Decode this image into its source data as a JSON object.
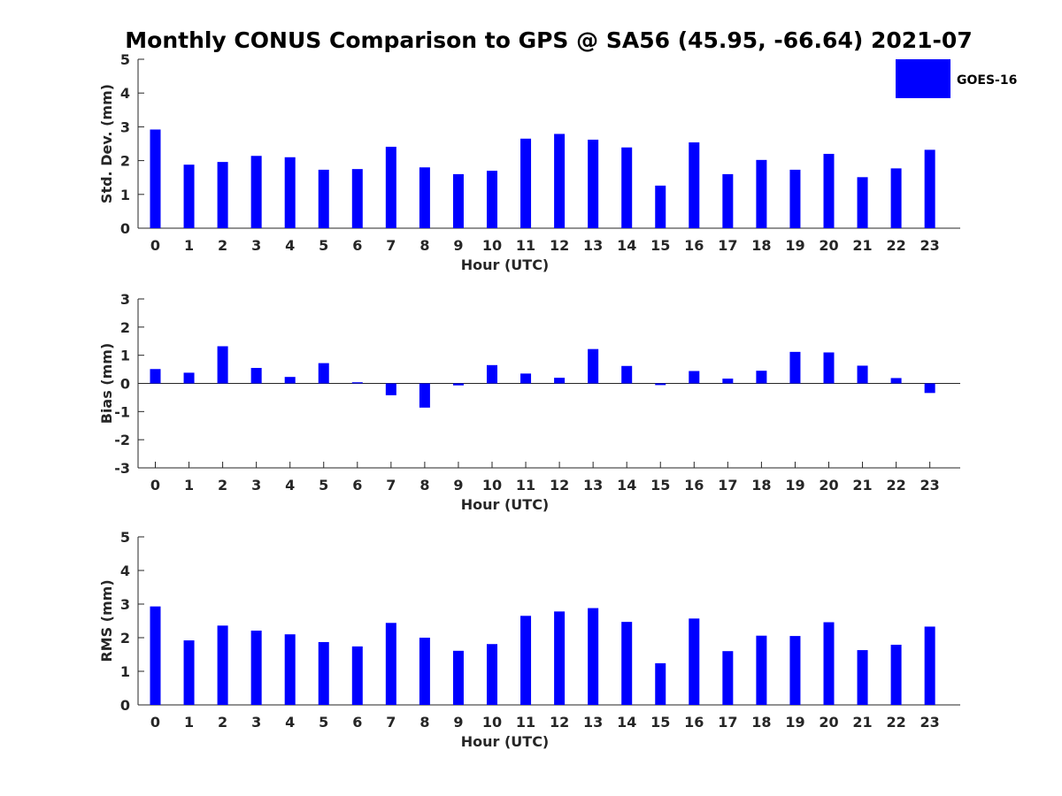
{
  "title": "Monthly CONUS Comparison to GPS @ SA56 (45.95, -66.64) 2021-07",
  "legend": {
    "label": "GOES-16",
    "placement": "top-right",
    "color": "#0000ff"
  },
  "chart_data": [
    {
      "type": "bar",
      "categories": [
        "0",
        "1",
        "2",
        "3",
        "4",
        "5",
        "6",
        "7",
        "8",
        "9",
        "10",
        "11",
        "12",
        "13",
        "14",
        "15",
        "16",
        "17",
        "18",
        "19",
        "20",
        "21",
        "22",
        "23"
      ],
      "series": [
        {
          "name": "GOES-16",
          "color": "#0000ff",
          "values": [
            2.92,
            1.88,
            1.96,
            2.14,
            2.1,
            1.73,
            1.75,
            2.41,
            1.8,
            1.6,
            1.7,
            2.65,
            2.79,
            2.62,
            2.39,
            1.26,
            2.54,
            1.6,
            2.02,
            1.73,
            2.2,
            1.51,
            1.77,
            2.32
          ]
        }
      ],
      "xlabel": "Hour (UTC)",
      "ylabel": "Std. Dev. (mm)",
      "ylim": [
        0,
        5
      ],
      "yticks": [
        "0",
        "1",
        "2",
        "3",
        "4",
        "5"
      ],
      "grid": false
    },
    {
      "type": "bar",
      "categories": [
        "0",
        "1",
        "2",
        "3",
        "4",
        "5",
        "6",
        "7",
        "8",
        "9",
        "10",
        "11",
        "12",
        "13",
        "14",
        "15",
        "16",
        "17",
        "18",
        "19",
        "20",
        "21",
        "22",
        "23"
      ],
      "series": [
        {
          "name": "GOES-16",
          "color": "#0000ff",
          "values": [
            0.51,
            0.38,
            1.32,
            0.55,
            0.23,
            0.72,
            0.04,
            -0.42,
            -0.86,
            -0.07,
            0.65,
            0.35,
            0.2,
            1.22,
            0.62,
            -0.06,
            0.44,
            0.17,
            0.45,
            1.12,
            1.1,
            0.63,
            0.19,
            -0.34
          ]
        }
      ],
      "xlabel": "Hour (UTC)",
      "ylabel": "Bias (mm)",
      "ylim": [
        -3,
        3
      ],
      "yticks": [
        "-3",
        "-2",
        "-1",
        "0",
        "1",
        "2",
        "3"
      ],
      "zero_line": true,
      "grid": false
    },
    {
      "type": "bar",
      "categories": [
        "0",
        "1",
        "2",
        "3",
        "4",
        "5",
        "6",
        "7",
        "8",
        "9",
        "10",
        "11",
        "12",
        "13",
        "14",
        "15",
        "16",
        "17",
        "18",
        "19",
        "20",
        "21",
        "22",
        "23"
      ],
      "series": [
        {
          "name": "GOES-16",
          "color": "#0000ff",
          "values": [
            2.93,
            1.92,
            2.36,
            2.21,
            2.1,
            1.87,
            1.74,
            2.44,
            2.0,
            1.61,
            1.81,
            2.65,
            2.78,
            2.88,
            2.47,
            1.24,
            2.57,
            1.6,
            2.06,
            2.05,
            2.46,
            1.63,
            1.79,
            2.33
          ]
        }
      ],
      "xlabel": "Hour (UTC)",
      "ylabel": "RMS (mm)",
      "ylim": [
        0,
        5
      ],
      "yticks": [
        "0",
        "1",
        "2",
        "3",
        "4",
        "5"
      ],
      "grid": false
    }
  ]
}
